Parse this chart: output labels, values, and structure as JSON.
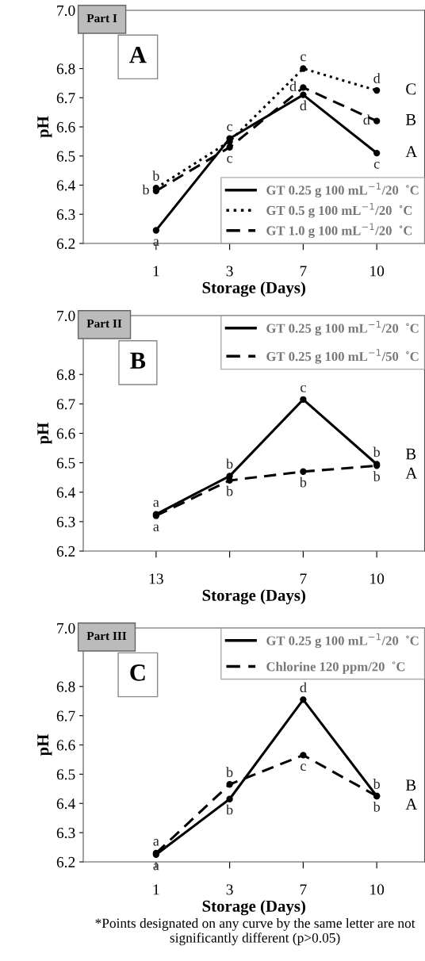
{
  "chart_data": [
    {
      "type": "line",
      "title": "Part I",
      "subtitle": "A",
      "xlabel": "Storage (Days)",
      "ylabel": "pH",
      "categories": [
        "1",
        "3",
        "7",
        "10"
      ],
      "ylim": [
        6.2,
        7.0
      ],
      "yticks": [
        {
          "value": 6.2,
          "label": "6.2"
        },
        {
          "value": 6.3,
          "label": "6.3"
        },
        {
          "value": 6.4,
          "label": "6.4"
        },
        {
          "value": 6.5,
          "label": "6.5"
        },
        {
          "value": 6.6,
          "label": "6.6"
        },
        {
          "value": 6.7,
          "label": "6.7"
        },
        {
          "value": 6.8,
          "label": "6.8"
        },
        {
          "value": 7.0,
          "label": "7.0"
        }
      ],
      "legend": "bottom right",
      "marker": "circle",
      "grid": false,
      "series": [
        {
          "name": "GT 0.25 g 100 mL$^{−1}$/20  ˚C",
          "color": "#000000",
          "line_style": "solid",
          "values": [
            6.245,
            6.56,
            6.71,
            6.51
          ],
          "value_labels": [
            "a",
            "c",
            "d",
            "c"
          ]
        },
        {
          "name": "GT 0.5 g 100 mL$^{−1}$/20  ˚C",
          "color": "#000000",
          "line_style": "dotted",
          "values": [
            6.39,
            6.55,
            6.8,
            6.725
          ],
          "value_labels": [
            "b",
            null,
            "c",
            "d"
          ]
        },
        {
          "name": "GT 1.0 g 100 mL$^{−1}$/20  ˚C",
          "color": "#000000",
          "line_style": "dashed",
          "values": [
            6.38,
            6.53,
            6.735,
            6.62
          ],
          "value_labels": [
            "b",
            "c",
            "d",
            "d"
          ]
        }
      ],
      "annotations": [
        "A",
        "B",
        "C"
      ]
    },
    {
      "type": "line",
      "title": "Part II",
      "subtitle": "B",
      "xlabel": "Storage (Days)",
      "ylabel": "pH",
      "categories": [
        "13",
        null,
        "7",
        "10"
      ],
      "ylim": [
        6.2,
        7.0
      ],
      "yticks": [
        {
          "value": 6.2,
          "label": "6.2"
        },
        {
          "value": 6.3,
          "label": "6.3"
        },
        {
          "value": 6.4,
          "label": "6.4"
        },
        {
          "value": 6.5,
          "label": "6.5"
        },
        {
          "value": 6.6,
          "label": "6.6"
        },
        {
          "value": 6.7,
          "label": "6.7"
        },
        {
          "value": 6.8,
          "label": "6.8"
        },
        {
          "value": 7.0,
          "label": "7.0"
        }
      ],
      "legend": "top right",
      "marker": "circle",
      "grid": false,
      "series": [
        {
          "name": "GT 0.25 g 100 mL$^{−1}$/20  ˚C",
          "color": "#000000",
          "line_style": "solid",
          "values": [
            6.325,
            6.455,
            6.715,
            6.495
          ],
          "value_labels": [
            "a",
            "b",
            "c",
            "b"
          ]
        },
        {
          "name": "GT 0.25 g 100 mL$^{−1}$/50  ˚C",
          "color": "#000000",
          "line_style": "dashed",
          "values": [
            6.32,
            6.44,
            6.47,
            6.49
          ],
          "value_labels": [
            "a",
            "b",
            "b",
            "b"
          ]
        }
      ],
      "annotations": [
        "A",
        "B"
      ]
    },
    {
      "type": "line",
      "title": "Part III",
      "subtitle": "C",
      "xlabel": "Storage (Days)",
      "ylabel": "pH",
      "categories": [
        "1",
        "3",
        "7",
        "10"
      ],
      "ylim": [
        6.2,
        7.0
      ],
      "yticks": [
        {
          "value": 6.2,
          "label": "6.2"
        },
        {
          "value": 6.3,
          "label": "6.3"
        },
        {
          "value": 6.4,
          "label": "6.4"
        },
        {
          "value": 6.5,
          "label": "6.5"
        },
        {
          "value": 6.6,
          "label": "6.6"
        },
        {
          "value": 6.7,
          "label": "6.7"
        },
        {
          "value": 6.8,
          "label": "6.8"
        },
        {
          "value": 7.0,
          "label": "7.0"
        }
      ],
      "legend": "top right",
      "marker": "circle",
      "grid": false,
      "series": [
        {
          "name": "GT 0.25 g 100 mL$^{−1}$/20  ˚C",
          "color": "#000000",
          "line_style": "solid",
          "values": [
            6.225,
            6.415,
            6.755,
            6.425
          ],
          "value_labels": [
            "a",
            "b",
            "d",
            "b"
          ]
        },
        {
          "name": "Chlorine 120 ppm/20  ˚C",
          "color": "#000000",
          "line_style": "dashed",
          "values": [
            6.23,
            6.465,
            6.565,
            6.425
          ],
          "value_labels": [
            "a",
            "b",
            "c",
            "b"
          ]
        }
      ],
      "annotations": [
        "A",
        "B",
        "*Points designated on any curve by the same letter are not significantly different (p>0.05)"
      ]
    }
  ]
}
